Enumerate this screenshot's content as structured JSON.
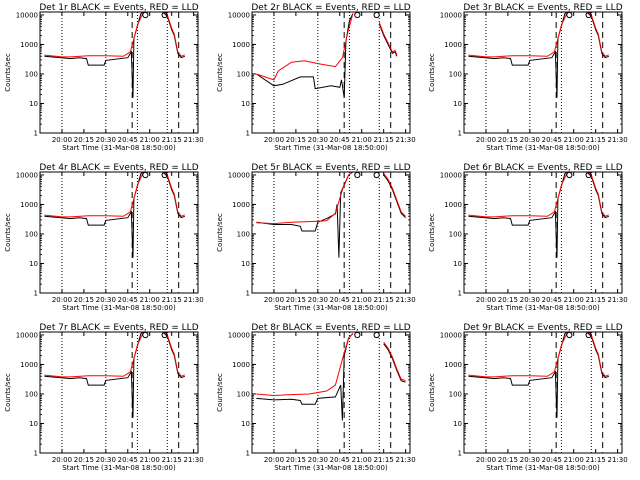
{
  "chart_data": [
    {
      "type": "line",
      "title": "Det 1r BLACK = Events, RED = LLD",
      "profile": 0,
      "xlabel": "Start Time (31-Mar-08 18:50:00)",
      "ylabel": "Counts/sec",
      "xticks": [
        "20:00",
        "20:15",
        "20:30",
        "20:45",
        "21:00",
        "21:15",
        "21:30"
      ],
      "yticks": [
        "1",
        "10",
        "100",
        "1000",
        "10000"
      ],
      "series": [
        {
          "name": "Events",
          "color": "#000000"
        },
        {
          "name": "LLD",
          "color": "#ff0000"
        }
      ]
    },
    {
      "type": "line",
      "title": "Det 2r BLACK = Events, RED = LLD",
      "profile": 1,
      "xlabel": "Start Time (31-Mar-08 18:50:00)",
      "ylabel": "Counts/sec",
      "xticks": [
        "20:00",
        "20:15",
        "20:30",
        "20:45",
        "21:00",
        "21:15",
        "21:30"
      ],
      "yticks": [
        "1",
        "10",
        "100",
        "1000",
        "10000"
      ],
      "series": [
        {
          "name": "Events",
          "color": "#000000"
        },
        {
          "name": "LLD",
          "color": "#ff0000"
        }
      ]
    },
    {
      "type": "line",
      "title": "Det 3r BLACK = Events, RED = LLD",
      "profile": 0,
      "xlabel": "Start Time (31-Mar-08 18:50:00)",
      "ylabel": "Counts/sec",
      "xticks": [
        "20:00",
        "20:15",
        "20:30",
        "20:45",
        "21:00",
        "21:15",
        "21:30"
      ],
      "yticks": [
        "1",
        "10",
        "100",
        "1000",
        "10000"
      ],
      "series": [
        {
          "name": "Events",
          "color": "#000000"
        },
        {
          "name": "LLD",
          "color": "#ff0000"
        }
      ]
    },
    {
      "type": "line",
      "title": "Det 4r BLACK = Events, RED = LLD",
      "profile": 0,
      "xlabel": "Start Time (31-Mar-08 18:50:00)",
      "ylabel": "Counts/sec",
      "xticks": [
        "20:00",
        "20:15",
        "20:30",
        "20:45",
        "21:00",
        "21:15",
        "21:30"
      ],
      "yticks": [
        "1",
        "10",
        "100",
        "1000",
        "10000"
      ],
      "series": [
        {
          "name": "Events",
          "color": "#000000"
        },
        {
          "name": "LLD",
          "color": "#ff0000"
        }
      ]
    },
    {
      "type": "line",
      "title": "Det 5r BLACK = Events, RED = LLD",
      "profile": 2,
      "xlabel": "Start Time (31-Mar-08 18:50:00)",
      "ylabel": "Counts/sec",
      "xticks": [
        "20:00",
        "20:15",
        "20:30",
        "20:45",
        "21:00",
        "21:15",
        "21:30"
      ],
      "yticks": [
        "1",
        "10",
        "100",
        "1000",
        "10000"
      ],
      "series": [
        {
          "name": "Events",
          "color": "#000000"
        },
        {
          "name": "LLD",
          "color": "#ff0000"
        }
      ]
    },
    {
      "type": "line",
      "title": "Det 6r BLACK = Events, RED = LLD",
      "profile": 0,
      "xlabel": "Start Time (31-Mar-08 18:50:00)",
      "ylabel": "Counts/sec",
      "xticks": [
        "20:00",
        "20:15",
        "20:30",
        "20:45",
        "21:00",
        "21:15",
        "21:30"
      ],
      "yticks": [
        "1",
        "10",
        "100",
        "1000",
        "10000"
      ],
      "series": [
        {
          "name": "Events",
          "color": "#000000"
        },
        {
          "name": "LLD",
          "color": "#ff0000"
        }
      ]
    },
    {
      "type": "line",
      "title": "Det 7r BLACK = Events, RED = LLD",
      "profile": 0,
      "xlabel": "Start Time (31-Mar-08 18:50:00)",
      "ylabel": "Counts/sec",
      "xticks": [
        "20:00",
        "20:15",
        "20:30",
        "20:45",
        "21:00",
        "21:15",
        "21:30"
      ],
      "yticks": [
        "1",
        "10",
        "100",
        "1000",
        "10000"
      ],
      "series": [
        {
          "name": "Events",
          "color": "#000000"
        },
        {
          "name": "LLD",
          "color": "#ff0000"
        }
      ]
    },
    {
      "type": "line",
      "title": "Det 8r BLACK = Events, RED = LLD",
      "profile": 3,
      "xlabel": "Start Time (31-Mar-08 18:50:00)",
      "ylabel": "Counts/sec",
      "xticks": [
        "20:00",
        "20:15",
        "20:30",
        "20:45",
        "21:00",
        "21:15",
        "21:30"
      ],
      "yticks": [
        "1",
        "10",
        "100",
        "1000",
        "10000"
      ],
      "series": [
        {
          "name": "Events",
          "color": "#000000"
        },
        {
          "name": "LLD",
          "color": "#ff0000"
        }
      ]
    },
    {
      "type": "line",
      "title": "Det 9r BLACK = Events, RED = LLD",
      "profile": 0,
      "xlabel": "Start Time (31-Mar-08 18:50:00)",
      "ylabel": "Counts/sec",
      "xticks": [
        "20:00",
        "20:15",
        "20:30",
        "20:45",
        "21:00",
        "21:15",
        "21:30"
      ],
      "yticks": [
        "1",
        "10",
        "100",
        "1000",
        "10000"
      ],
      "series": [
        {
          "name": "Events",
          "color": "#000000"
        },
        {
          "name": "LLD",
          "color": "#ff0000"
        }
      ]
    }
  ],
  "profiles": [
    {
      "events": [
        [
          19.8,
          2.6
        ],
        [
          20.1,
          2.52
        ],
        [
          20.2,
          2.55
        ],
        [
          20.28,
          2.52
        ],
        [
          20.3,
          2.3
        ],
        [
          20.48,
          2.3
        ],
        [
          20.5,
          2.46
        ],
        [
          20.75,
          2.55
        ],
        [
          20.79,
          2.75
        ],
        [
          20.81,
          1.2
        ],
        [
          20.82,
          3.2
        ],
        [
          20.9,
          4.05
        ],
        [
          20.95,
          4.15
        ]
      ],
      "lld": [
        [
          19.8,
          2.64
        ],
        [
          20.0,
          2.58
        ],
        [
          20.1,
          2.58
        ],
        [
          20.3,
          2.62
        ],
        [
          20.5,
          2.62
        ],
        [
          20.7,
          2.6
        ],
        [
          20.78,
          2.75
        ],
        [
          20.86,
          3.65
        ],
        [
          20.92,
          4.05
        ],
        [
          20.95,
          4.15
        ]
      ],
      "after": [
        [
          21.15,
          4.1
        ],
        [
          21.2,
          3.95
        ],
        [
          21.25,
          3.5
        ],
        [
          21.28,
          3.3
        ],
        [
          21.32,
          2.7
        ],
        [
          21.36,
          2.55
        ],
        [
          21.4,
          2.6
        ]
      ]
    },
    {
      "events": [
        [
          19.8,
          2.0
        ],
        [
          20.0,
          1.6
        ],
        [
          20.1,
          1.65
        ],
        [
          20.3,
          1.9
        ],
        [
          20.45,
          1.9
        ],
        [
          20.47,
          1.5
        ],
        [
          20.65,
          1.6
        ],
        [
          20.75,
          1.55
        ],
        [
          20.77,
          1.8
        ],
        [
          20.8,
          1.2
        ],
        [
          20.82,
          3.1
        ],
        [
          20.86,
          3.8
        ],
        [
          20.9,
          4.05
        ]
      ],
      "lld": [
        [
          19.8,
          2.0
        ],
        [
          20.0,
          1.8
        ],
        [
          20.05,
          2.1
        ],
        [
          20.2,
          2.4
        ],
        [
          20.35,
          2.45
        ],
        [
          20.5,
          2.35
        ],
        [
          20.7,
          2.25
        ],
        [
          20.78,
          2.55
        ],
        [
          20.84,
          3.4
        ],
        [
          20.9,
          4.05
        ]
      ],
      "after": [
        [
          21.2,
          3.7
        ],
        [
          21.25,
          3.3
        ],
        [
          21.3,
          3.0
        ],
        [
          21.35,
          2.7
        ],
        [
          21.38,
          2.75
        ],
        [
          21.4,
          2.6
        ]
      ]
    },
    {
      "events": [
        [
          19.8,
          2.4
        ],
        [
          20.0,
          2.32
        ],
        [
          20.2,
          2.32
        ],
        [
          20.3,
          2.26
        ],
        [
          20.32,
          2.1
        ],
        [
          20.47,
          2.1
        ],
        [
          20.5,
          2.4
        ],
        [
          20.6,
          2.52
        ],
        [
          20.7,
          2.68
        ],
        [
          20.72,
          3.0
        ],
        [
          20.74,
          1.2
        ],
        [
          20.76,
          3.4
        ],
        [
          20.85,
          4.0
        ],
        [
          20.9,
          4.1
        ]
      ],
      "lld": [
        [
          19.8,
          2.38
        ],
        [
          20.0,
          2.35
        ],
        [
          20.2,
          2.4
        ],
        [
          20.4,
          2.42
        ],
        [
          20.6,
          2.45
        ],
        [
          20.7,
          2.7
        ],
        [
          20.78,
          3.5
        ],
        [
          20.85,
          4.0
        ],
        [
          20.9,
          4.1
        ]
      ],
      "after": [
        [
          21.25,
          4.0
        ],
        [
          21.3,
          3.8
        ],
        [
          21.35,
          3.5
        ],
        [
          21.4,
          3.1
        ],
        [
          21.45,
          2.7
        ],
        [
          21.5,
          2.55
        ]
      ]
    },
    {
      "events": [
        [
          19.8,
          1.85
        ],
        [
          20.0,
          1.8
        ],
        [
          20.2,
          1.82
        ],
        [
          20.3,
          1.78
        ],
        [
          20.32,
          1.65
        ],
        [
          20.47,
          1.65
        ],
        [
          20.5,
          1.85
        ],
        [
          20.7,
          1.9
        ],
        [
          20.76,
          2.3
        ],
        [
          20.78,
          1.1
        ],
        [
          20.8,
          3.3
        ],
        [
          20.85,
          3.9
        ],
        [
          20.9,
          4.05
        ]
      ],
      "lld": [
        [
          19.8,
          2.0
        ],
        [
          20.0,
          1.95
        ],
        [
          20.2,
          1.98
        ],
        [
          20.4,
          2.0
        ],
        [
          20.6,
          2.1
        ],
        [
          20.7,
          2.3
        ],
        [
          20.8,
          3.4
        ],
        [
          20.85,
          3.9
        ],
        [
          20.9,
          4.05
        ]
      ],
      "after": [
        [
          21.25,
          3.7
        ],
        [
          21.3,
          3.5
        ],
        [
          21.35,
          3.2
        ],
        [
          21.4,
          2.8
        ],
        [
          21.45,
          2.45
        ],
        [
          21.5,
          2.4
        ]
      ]
    }
  ]
}
